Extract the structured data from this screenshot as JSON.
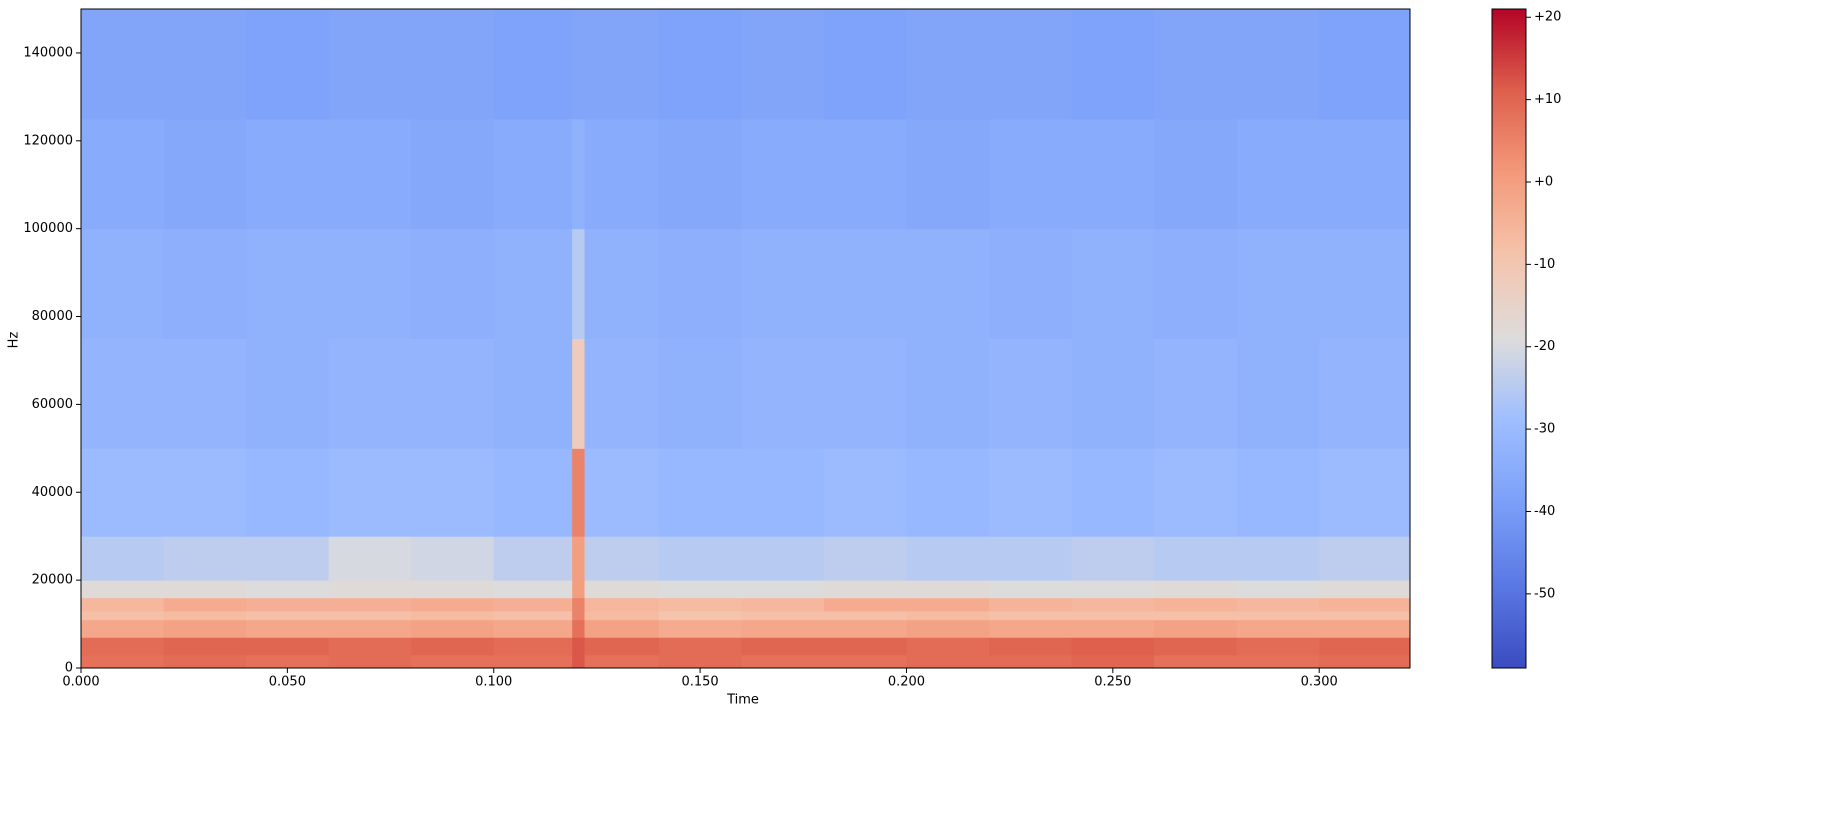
{
  "chart_data": {
    "type": "heatmap",
    "xlabel": "Time",
    "ylabel": "Hz",
    "colormap": "coolwarm",
    "x_edges": [
      0,
      0.02,
      0.04,
      0.06,
      0.08,
      0.1,
      0.119,
      0.122,
      0.14,
      0.16,
      0.18,
      0.2,
      0.22,
      0.24,
      0.26,
      0.28,
      0.3,
      0.322
    ],
    "y_edges": [
      0,
      3000,
      7000,
      11000,
      13000,
      16000,
      20000,
      30000,
      50000,
      75000,
      100000,
      125000,
      150000
    ],
    "z": [
      [
        8,
        9,
        8,
        9,
        8,
        8,
        12,
        8,
        9,
        8,
        8,
        9,
        9,
        10,
        8,
        8,
        9
      ],
      [
        9,
        10,
        10,
        9,
        10,
        9,
        12,
        10,
        9,
        10,
        10,
        9,
        10,
        11,
        10,
        9,
        10
      ],
      [
        -2,
        -1,
        -2,
        -2,
        -1,
        -2,
        8,
        -1,
        -3,
        -2,
        -2,
        -1,
        -2,
        -2,
        -1,
        -2,
        -2
      ],
      [
        -8,
        -7,
        -8,
        -8,
        -7,
        -8,
        5,
        -7,
        -9,
        -8,
        -8,
        -7,
        -8,
        -8,
        -8,
        -8,
        -8
      ],
      [
        -6,
        -3,
        -4,
        -4,
        -3,
        -4,
        5,
        -6,
        -7,
        -6,
        -3,
        -3,
        -5,
        -6,
        -5,
        -6,
        -5
      ],
      [
        -18,
        -18,
        -19,
        -18,
        -18,
        -19,
        0,
        -18,
        -19,
        -19,
        -18,
        -18,
        -19,
        -19,
        -18,
        -19,
        -18
      ],
      [
        -25,
        -24,
        -24,
        -20,
        -21,
        -24,
        0,
        -24,
        -25,
        -25,
        -24,
        -25,
        -25,
        -24,
        -25,
        -25,
        -24
      ],
      [
        -30,
        -30,
        -31,
        -30,
        -30,
        -31,
        5,
        -30,
        -31,
        -31,
        -30,
        -31,
        -30,
        -31,
        -30,
        -31,
        -30
      ],
      [
        -32,
        -32,
        -33,
        -32,
        -32,
        -33,
        -12,
        -32,
        -33,
        -32,
        -32,
        -33,
        -32,
        -33,
        -32,
        -33,
        -32
      ],
      [
        -33,
        -34,
        -33,
        -33,
        -34,
        -33,
        -25,
        -33,
        -34,
        -33,
        -33,
        -33,
        -34,
        -33,
        -34,
        -33,
        -33
      ],
      [
        -35,
        -36,
        -35,
        -35,
        -36,
        -35,
        -33,
        -35,
        -36,
        -35,
        -35,
        -36,
        -35,
        -35,
        -36,
        -35,
        -35
      ],
      [
        -37,
        -37,
        -38,
        -37,
        -37,
        -38,
        -37,
        -37,
        -38,
        -37,
        -38,
        -37,
        -37,
        -38,
        -37,
        -37,
        -38
      ]
    ],
    "xlim": [
      0,
      0.322
    ],
    "ylim": [
      0,
      150000
    ],
    "zlim": [
      -59,
      21
    ],
    "xticks": [
      {
        "value": 0,
        "label": "0.000"
      },
      {
        "value": 0.05,
        "label": "0.050"
      },
      {
        "value": 0.1,
        "label": "0.100"
      },
      {
        "value": 0.15,
        "label": "0.150"
      },
      {
        "value": 0.2,
        "label": "0.200"
      },
      {
        "value": 0.25,
        "label": "0.250"
      },
      {
        "value": 0.3,
        "label": "0.300"
      }
    ],
    "yticks": [
      0,
      20000,
      40000,
      60000,
      80000,
      100000,
      120000,
      140000
    ],
    "colorbar_ticks": [
      {
        "value": 20,
        "label": "+20"
      },
      {
        "value": 10,
        "label": "+10"
      },
      {
        "value": 0,
        "label": "+0"
      },
      -10,
      -20,
      -30,
      -40,
      -50
    ]
  }
}
